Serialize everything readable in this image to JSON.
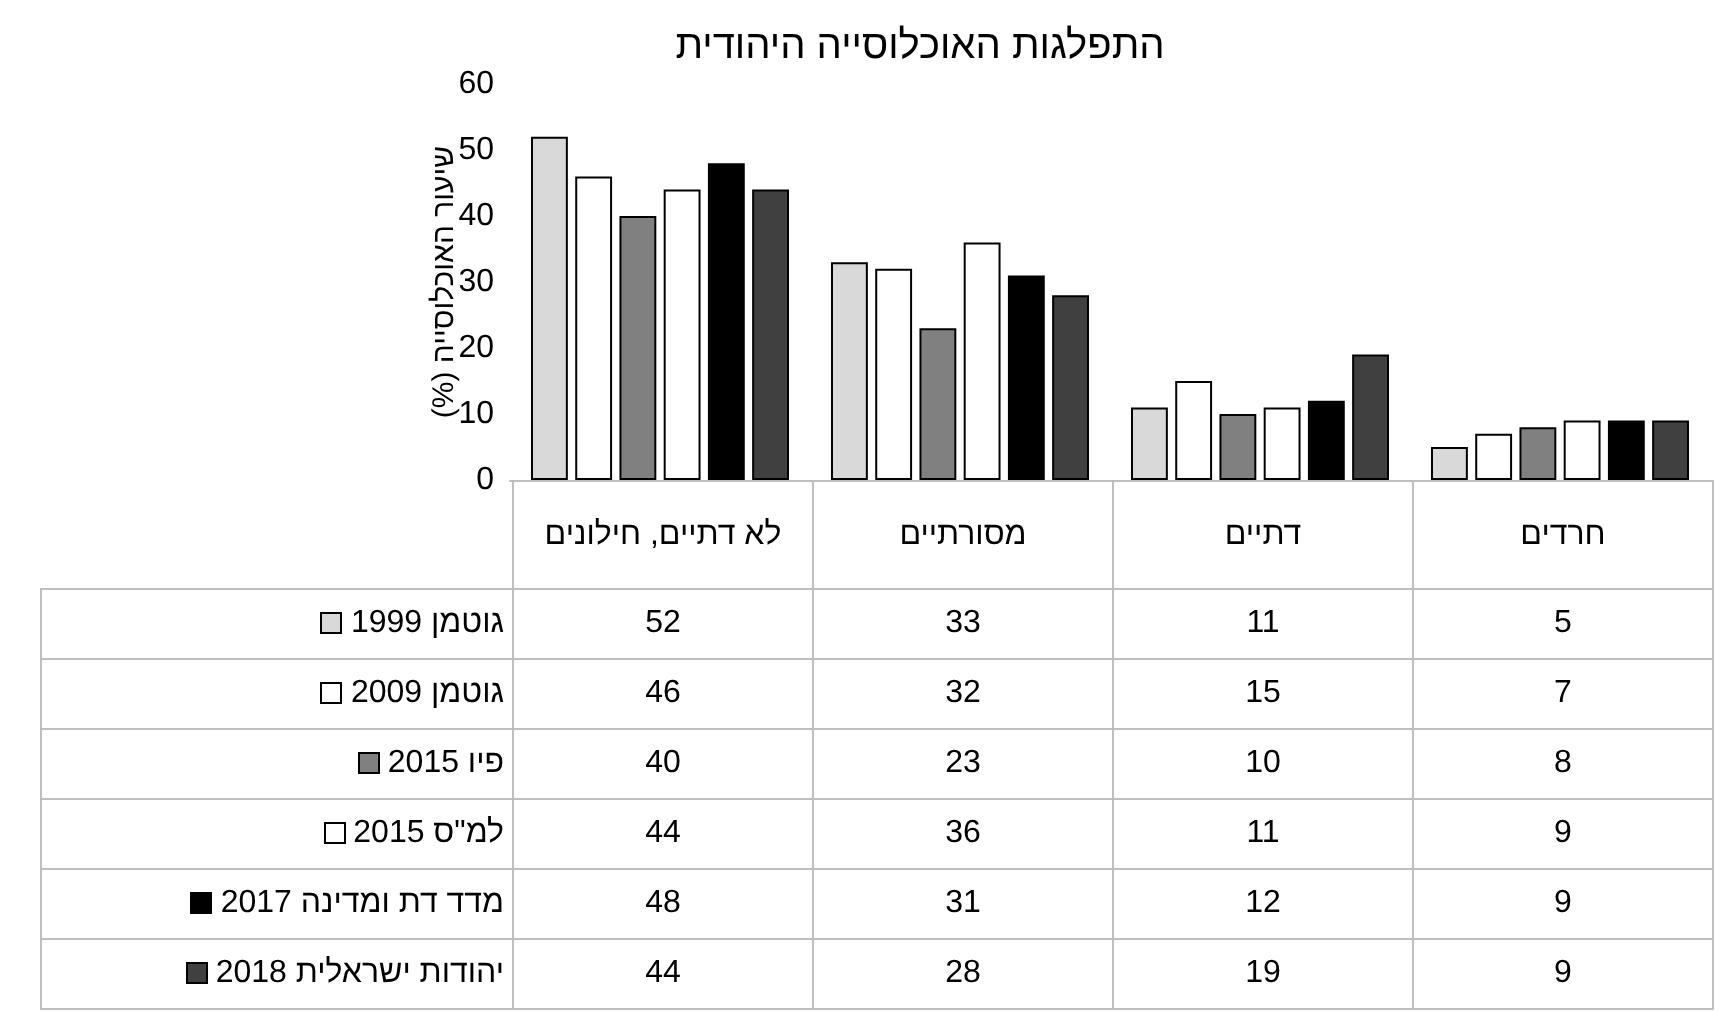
{
  "chart_data": {
    "type": "bar",
    "title": "התפלגות האוכלוסייה היהודית",
    "ylabel": "שיעור האוכלוסייה (%)",
    "categories": [
      "לא דתיים, חילונים",
      "מסורתיים",
      "דתיים",
      "חרדים"
    ],
    "series": [
      {
        "name": "גוטמן 1999",
        "color": "#d9d9d9",
        "values": [
          52,
          33,
          11,
          5
        ]
      },
      {
        "name": "גוטמן 2009",
        "color": "#ffffff",
        "values": [
          46,
          32,
          15,
          7
        ]
      },
      {
        "name": "פיו 2015",
        "color": "#808080",
        "values": [
          40,
          23,
          10,
          8
        ]
      },
      {
        "name": "למ\"ס 2015",
        "color": "#ffffff",
        "values": [
          44,
          36,
          11,
          9
        ]
      },
      {
        "name": "מדד דת ומדינה 2017",
        "color": "#000000",
        "values": [
          48,
          31,
          12,
          9
        ]
      },
      {
        "name": "יהודות ישראלית 2018",
        "color": "#404040",
        "values": [
          44,
          28,
          19,
          9
        ]
      }
    ],
    "ylim": [
      0,
      60
    ],
    "yticks": [
      0,
      10,
      20,
      30,
      40,
      50,
      60
    ],
    "grid": false,
    "legend": "bottom left",
    "data_labels": true
  }
}
